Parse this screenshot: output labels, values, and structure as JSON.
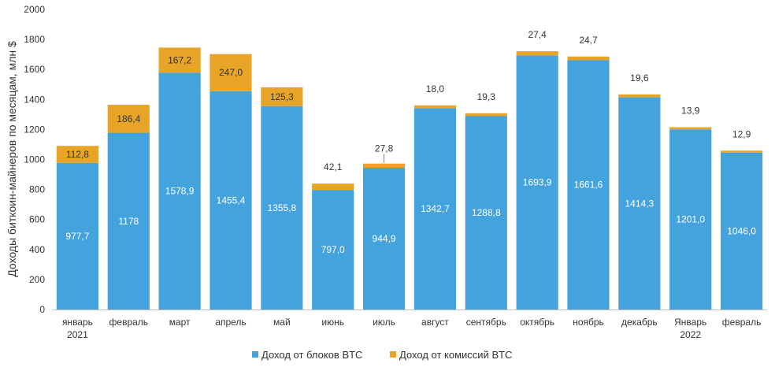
{
  "chart_data": {
    "type": "bar",
    "stacked": true,
    "categories": [
      [
        "январь",
        "2021"
      ],
      [
        "февраль"
      ],
      [
        "март"
      ],
      [
        "апрель"
      ],
      [
        "май"
      ],
      [
        "июнь"
      ],
      [
        "июль"
      ],
      [
        "август"
      ],
      [
        "сентябрь"
      ],
      [
        "октябрь"
      ],
      [
        "ноябрь"
      ],
      [
        "декабрь"
      ],
      [
        "Январь",
        "2022"
      ],
      [
        "февраль"
      ]
    ],
    "series": [
      {
        "name": "Доход от блоков BTC",
        "color": "#44a3dc",
        "values": [
          977.7,
          1178,
          1578.9,
          1455.4,
          1355.8,
          797.0,
          944.9,
          1342.7,
          1288.8,
          1693.9,
          1661.6,
          1414.3,
          1201.0,
          1046.0
        ],
        "labels": [
          "977,7",
          "1178",
          "1578,9",
          "1455,4",
          "1355,8",
          "797,0",
          "944,9",
          "1342,7",
          "1288,8",
          "1693,9",
          "1661,6",
          "1414,3",
          "1201,0",
          "1046,0"
        ]
      },
      {
        "name": "Доход от комиссий BTC",
        "color": "#e8a427",
        "values": [
          112.8,
          186.4,
          167.2,
          247.0,
          125.3,
          42.1,
          27.8,
          18.0,
          19.3,
          27.4,
          24.7,
          19.6,
          13.9,
          12.9
        ],
        "labels": [
          "112,8",
          "186,4",
          "167,2",
          "247,0",
          "125,3",
          "42,1",
          "27,8",
          "18,0",
          "19,3",
          "27,4",
          "24,7",
          "19,6",
          "13,9",
          "12,9"
        ]
      }
    ],
    "ylabel": "Доходы биткоин-майнеров по месяцам, млн $",
    "ylim": [
      0,
      2000
    ],
    "yticks": [
      0,
      200,
      400,
      600,
      800,
      1000,
      1200,
      1400,
      1600,
      1800,
      2000
    ],
    "grid": false,
    "legend": "bottom-center"
  }
}
